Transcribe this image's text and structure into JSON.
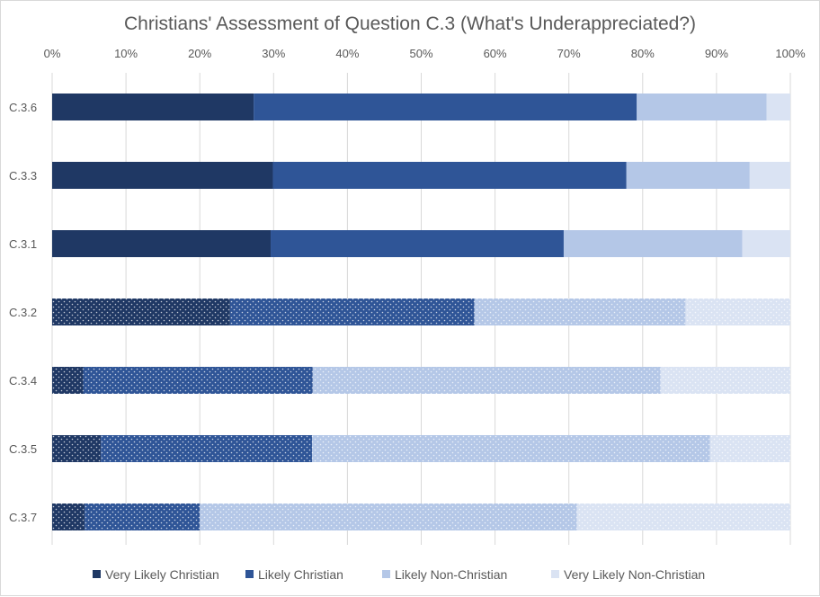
{
  "chart_data": {
    "type": "bar",
    "orientation": "horizontal",
    "stacked": "100%",
    "title": "Christians' Assessment of Question C.3 (What's Underappreciated?)",
    "xlabel": "",
    "ylabel": "",
    "xlim": [
      0,
      100
    ],
    "x_ticks": [
      "0%",
      "10%",
      "20%",
      "30%",
      "40%",
      "50%",
      "60%",
      "70%",
      "80%",
      "90%",
      "100%"
    ],
    "grid": "vertical",
    "legend_position": "bottom",
    "categories": [
      "C.3.6",
      "C.3.3",
      "C.3.1",
      "C.3.2",
      "C.3.4",
      "C.3.5",
      "C.3.7"
    ],
    "dotted_pattern_categories": [
      "C.3.2",
      "C.3.4",
      "C.3.5",
      "C.3.7"
    ],
    "series": [
      {
        "name": "Very Likely Christian",
        "color": "#1f3864",
        "values": [
          27.3,
          29.9,
          29.6,
          24.1,
          4.2,
          6.6,
          4.4
        ]
      },
      {
        "name": "Likely Christian",
        "color": "#2f5597",
        "values": [
          51.9,
          47.9,
          39.7,
          33.1,
          31.1,
          28.6,
          15.6
        ]
      },
      {
        "name": "Likely Non-Christian",
        "color": "#b4c7e7",
        "values": [
          17.6,
          16.7,
          24.2,
          28.6,
          47.1,
          53.9,
          51.1
        ]
      },
      {
        "name": "Very Likely Non-Christian",
        "color": "#dae3f3",
        "values": [
          3.2,
          5.5,
          6.5,
          14.2,
          17.6,
          10.9,
          28.9
        ]
      }
    ]
  }
}
